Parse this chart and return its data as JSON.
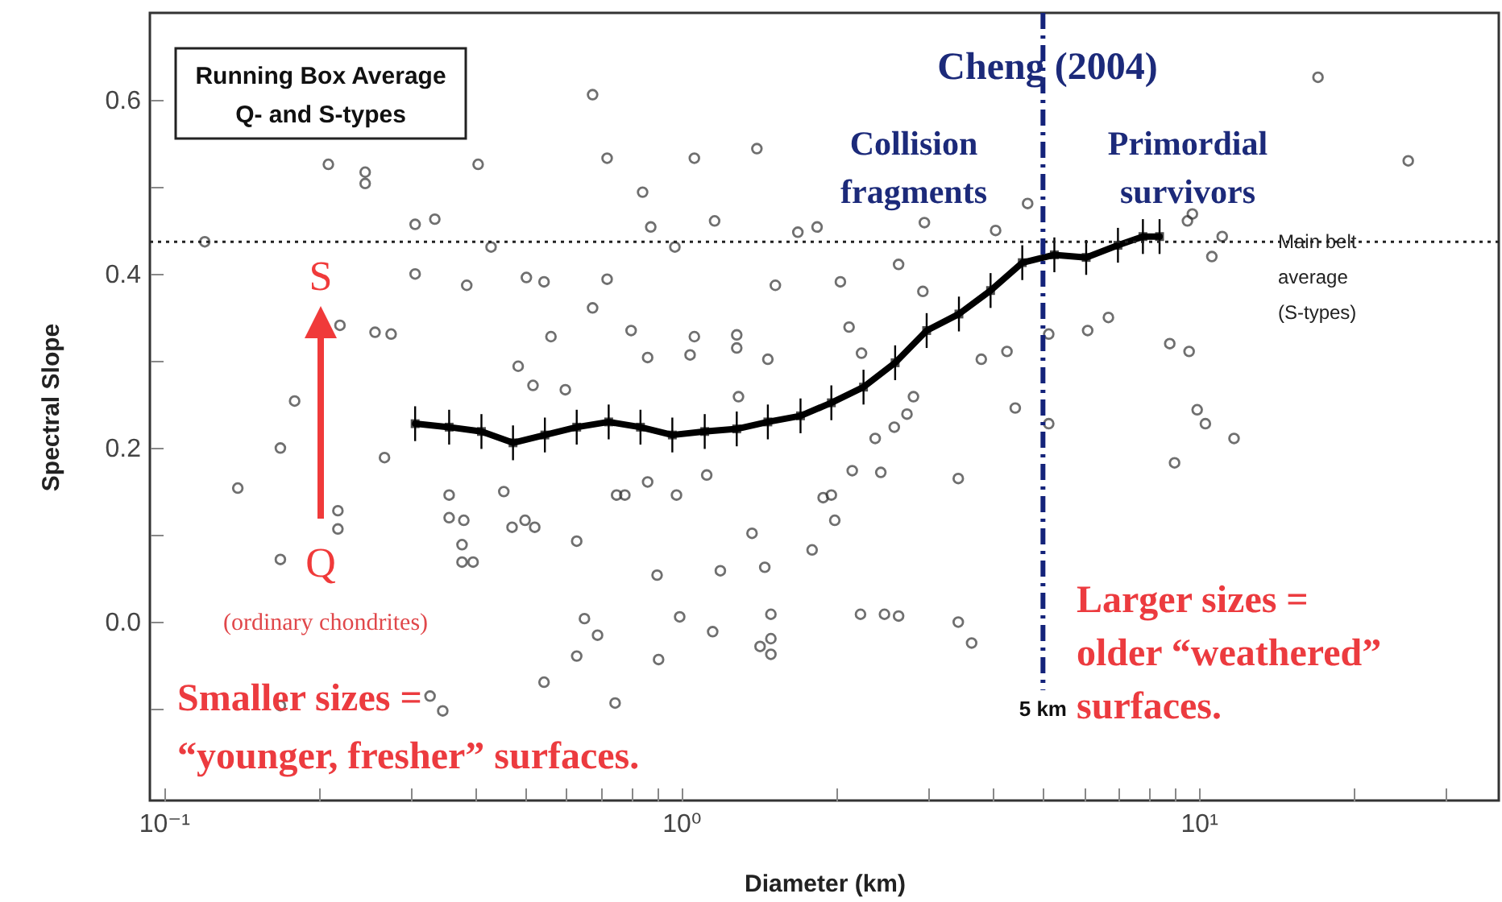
{
  "chart_data": {
    "type": "scatter",
    "xlabel": "Diameter (km)",
    "ylabel": "Spectral Slope",
    "log": "x",
    "grid": false,
    "xlim": [
      0.094,
      38
    ],
    "ylim": [
      -0.205,
      0.7
    ],
    "xticks": [
      {
        "value": 0.1,
        "label": "10⁻¹"
      },
      {
        "value": 0.2,
        "label": null
      },
      {
        "value": 0.3,
        "label": null
      },
      {
        "value": 0.4,
        "label": null
      },
      {
        "value": 0.5,
        "label": null
      },
      {
        "value": 0.6,
        "label": null
      },
      {
        "value": 0.7,
        "label": null
      },
      {
        "value": 0.8,
        "label": null
      },
      {
        "value": 0.9,
        "label": null
      },
      {
        "value": 1,
        "label": "10⁰"
      },
      {
        "value": 2,
        "label": null
      },
      {
        "value": 3,
        "label": null
      },
      {
        "value": 4,
        "label": null
      },
      {
        "value": 5,
        "label": null
      },
      {
        "value": 6,
        "label": null
      },
      {
        "value": 7,
        "label": null
      },
      {
        "value": 8,
        "label": null
      },
      {
        "value": 9,
        "label": null
      },
      {
        "value": 10,
        "label": "10¹"
      },
      {
        "value": 20,
        "label": null
      },
      {
        "value": 30,
        "label": null
      }
    ],
    "yticks": [
      {
        "value": -0.1,
        "label": null
      },
      {
        "value": 0,
        "label": "0.0"
      },
      {
        "value": 0.1,
        "label": null
      },
      0.2,
      {
        "value": 0.3,
        "label": null
      },
      0.4,
      {
        "value": 0.5,
        "label": null
      },
      0.6
    ],
    "series": [
      {
        "marker": "circle",
        "color": "#333333",
        "x": [
          0.674,
          0.208,
          0.245,
          0.245,
          0.405,
          0.719,
          0.306,
          0.334,
          0.12,
          0.429,
          0.306,
          0.385,
          0.502,
          0.543,
          0.719,
          0.674,
          0.219,
          0.256,
          0.275,
          0.56,
          0.484,
          0.517,
          0.597,
          0.179,
          1.06,
          1.4,
          0.842,
          0.873,
          1.16,
          0.972,
          1.68,
          1.83,
          2.95,
          4.05,
          4.67,
          1.52,
          2.03,
          2.63,
          2.93,
          0.8,
          1.06,
          1.04,
          1.28,
          1.28,
          0.861,
          1.47,
          2.11,
          2.23,
          3.8,
          4.26,
          5.13,
          1.29,
          2.81,
          17,
          25.4,
          9.51,
          9.72,
          11.1,
          10.6,
          6.69,
          6.1,
          8.79,
          9.58,
          0.168,
          0.267,
          0.139,
          0.217,
          0.217,
          0.168,
          0.356,
          0.356,
          0.38,
          0.377,
          0.377,
          0.396,
          0.454,
          0.471,
          0.499,
          0.521,
          0.628,
          0.65,
          0.689,
          0.628,
          0.543,
          0.327,
          0.346,
          0.168,
          4.42,
          2.73,
          2.58,
          2.37,
          2.14,
          2.43,
          1.12,
          0.861,
          0.75,
          0.778,
          0.979,
          1.88,
          1.95,
          1.98,
          3.43,
          1.37,
          1.79,
          0.898,
          1.19,
          1.45,
          0.993,
          1.49,
          1.15,
          1.49,
          2.22,
          2.47,
          2.63,
          3.43,
          3.64,
          0.904,
          1.42,
          1.49,
          0.745,
          5.13,
          9.93,
          10.3,
          11.7,
          8.98
        ],
        "values": [
          0.606,
          0.526,
          0.517,
          0.504,
          0.526,
          0.533,
          0.457,
          0.463,
          0.437,
          0.431,
          0.4,
          0.387,
          0.396,
          0.391,
          0.394,
          0.361,
          0.341,
          0.333,
          0.331,
          0.328,
          0.294,
          0.272,
          0.267,
          0.254,
          0.533,
          0.544,
          0.494,
          0.454,
          0.461,
          0.431,
          0.448,
          0.454,
          0.459,
          0.45,
          0.481,
          0.387,
          0.391,
          0.411,
          0.38,
          0.335,
          0.328,
          0.307,
          0.33,
          0.315,
          0.304,
          0.302,
          0.339,
          0.309,
          0.302,
          0.311,
          0.331,
          0.259,
          0.259,
          0.626,
          0.53,
          0.461,
          0.469,
          0.443,
          0.42,
          0.35,
          0.335,
          0.32,
          0.311,
          0.2,
          0.189,
          0.154,
          0.128,
          0.107,
          0.072,
          0.146,
          0.12,
          0.117,
          0.089,
          0.069,
          0.069,
          0.15,
          0.109,
          0.117,
          0.109,
          0.093,
          0.004,
          -0.015,
          -0.039,
          -0.069,
          -0.085,
          -0.102,
          -0.096,
          0.246,
          0.239,
          0.224,
          0.211,
          0.174,
          0.172,
          0.169,
          0.161,
          0.146,
          0.146,
          0.146,
          0.143,
          0.146,
          0.117,
          0.165,
          0.102,
          0.083,
          0.054,
          0.059,
          0.063,
          0.006,
          0.009,
          -0.011,
          -0.019,
          0.009,
          0.009,
          0.007,
          0,
          -0.024,
          -0.043,
          -0.028,
          -0.037,
          -0.093,
          0.228,
          0.244,
          0.228,
          0.211,
          0.183
        ]
      },
      {
        "type": "line",
        "marker": "square",
        "color": "#000000",
        "x": [
          0.306,
          0.356,
          0.411,
          0.473,
          0.545,
          0.628,
          0.724,
          0.834,
          0.961,
          1.11,
          1.28,
          1.47,
          1.7,
          1.95,
          2.25,
          2.59,
          2.98,
          3.44,
          3.96,
          4.56,
          5.26,
          6.06,
          6.98,
          7.8,
          8.4
        ],
        "values": [
          0.228,
          0.224,
          0.219,
          0.206,
          0.215,
          0.224,
          0.23,
          0.224,
          0.215,
          0.219,
          0.222,
          0.23,
          0.237,
          0.252,
          0.27,
          0.298,
          0.335,
          0.354,
          0.381,
          0.413,
          0.422,
          0.419,
          0.433,
          0.443,
          0.443
        ],
        "errors": [
          0.02,
          0.02,
          0.02,
          0.02,
          0.02,
          0.02,
          0.02,
          0.02,
          0.02,
          0.02,
          0.02,
          0.02,
          0.02,
          0.02,
          0.02,
          0.02,
          0.02,
          0.02,
          0.02,
          0.02,
          0.02,
          0.02,
          0.02,
          0.02,
          0.02
        ]
      }
    ],
    "ref_lines": [
      {
        "axis": "y",
        "value": 0.437,
        "label": "Main belt average (S-types)",
        "color": "#222222",
        "line_style": "dotted"
      },
      {
        "axis": "x",
        "value": 5,
        "label": "5 km",
        "color": "#14237a",
        "line_style": "dashed"
      }
    ],
    "annotations": [
      "Running Box Average\nQ- and S-types",
      "Cheng (2004)",
      "Collision\nfragments",
      "Primordial\nsurvivors",
      "S",
      "Q",
      "(ordinary chondrites)",
      "Smaller sizes =\n“younger, fresher” surfaces.",
      "Larger sizes =\nolder “weathered”\nsurfaces."
    ]
  }
}
